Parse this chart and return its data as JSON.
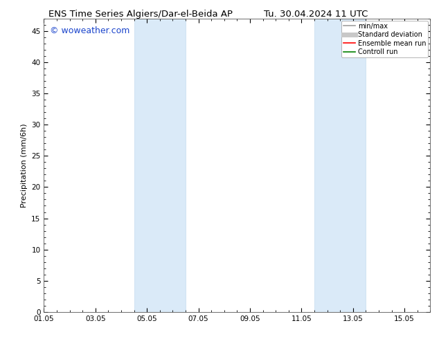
{
  "title_left": "ENS Time Series Algiers/Dar-el-Beida AP",
  "title_right": "Tu. 30.04.2024 11 UTC",
  "ylabel": "Precipitation (mm/6h)",
  "ylim": [
    0,
    47
  ],
  "yticks": [
    0,
    5,
    10,
    15,
    20,
    25,
    30,
    35,
    40,
    45
  ],
  "xlim": [
    0,
    15
  ],
  "xtick_labels": [
    "01.05",
    "03.05",
    "05.05",
    "07.05",
    "09.05",
    "11.05",
    "13.05",
    "15.05"
  ],
  "xtick_positions": [
    0,
    2,
    4,
    6,
    8,
    10,
    12,
    14
  ],
  "shaded_regions": [
    {
      "start": 3.5,
      "end": 5.5
    },
    {
      "start": 10.5,
      "end": 12.5
    }
  ],
  "shaded_color": "#daeaf8",
  "shaded_edge_color": "#c5ddf0",
  "background_color": "#ffffff",
  "watermark_text": "© woweather.com",
  "watermark_color": "#1a44cc",
  "legend_entries": [
    {
      "label": "min/max",
      "color": "#a0a0a0",
      "lw": 1.2,
      "ls": "-"
    },
    {
      "label": "Standard deviation",
      "color": "#c8c8c8",
      "lw": 5,
      "ls": "-"
    },
    {
      "label": "Ensemble mean run",
      "color": "#ff0000",
      "lw": 1.2,
      "ls": "-"
    },
    {
      "label": "Controll run",
      "color": "#008000",
      "lw": 1.2,
      "ls": "-"
    }
  ],
  "title_fontsize": 9.5,
  "tick_fontsize": 7.5,
  "label_fontsize": 8,
  "watermark_fontsize": 9,
  "legend_fontsize": 7
}
